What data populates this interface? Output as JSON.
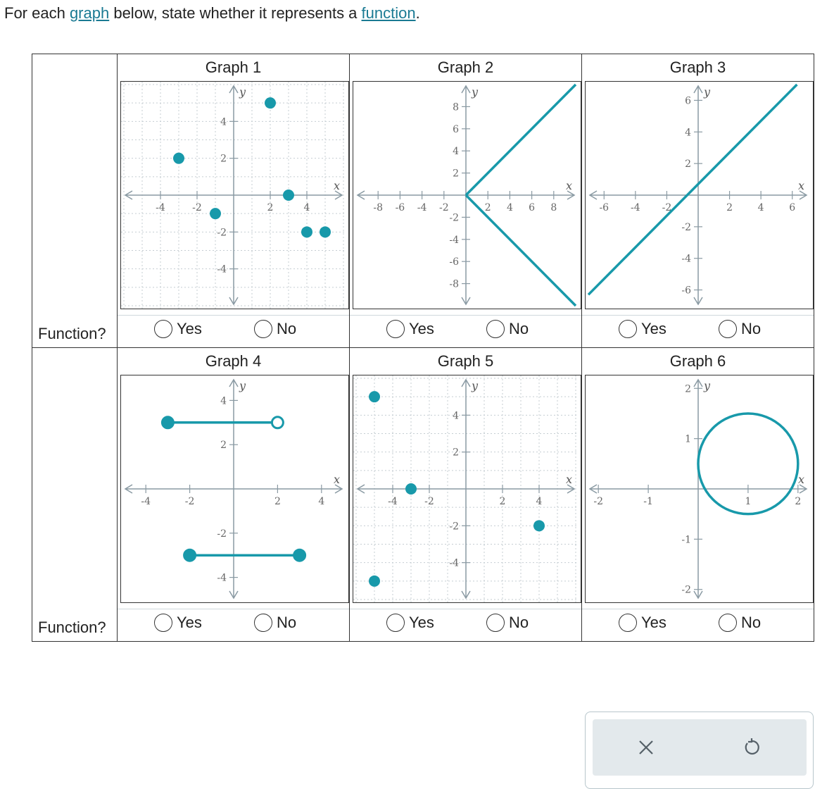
{
  "prompt": {
    "before": "For each ",
    "link1": "graph",
    "middle": " below, state whether it represents a ",
    "link2": "function",
    "after": "."
  },
  "row_label": "Function?",
  "choice_yes": "Yes",
  "choice_no": "No",
  "graphs": [
    {
      "title": "Graph 1",
      "type": "scatter",
      "x_axis_label": "x",
      "y_axis_label": "y",
      "xlim": [
        -6,
        6
      ],
      "ylim": [
        -6,
        6
      ],
      "x_ticks": [
        -4,
        -2,
        2,
        4
      ],
      "y_ticks": [
        -4,
        -2,
        2,
        4
      ],
      "points": [
        [
          -3,
          2
        ],
        [
          -1,
          -1
        ],
        [
          2,
          5
        ],
        [
          3,
          0
        ],
        [
          4,
          -2
        ],
        [
          5,
          -2
        ]
      ]
    },
    {
      "title": "Graph 2",
      "type": "line",
      "x_axis_label": "x",
      "y_axis_label": "y",
      "xlim": [
        -10,
        10
      ],
      "ylim": [
        -10,
        10
      ],
      "x_ticks": [
        -8,
        -6,
        -4,
        -2,
        2,
        4,
        6,
        8
      ],
      "y_ticks": [
        -8,
        -6,
        -4,
        -2,
        2,
        4,
        6,
        8
      ],
      "lines": [
        [
          [
            0,
            0
          ],
          [
            10,
            10
          ]
        ],
        [
          [
            0,
            0
          ],
          [
            10,
            -10
          ]
        ]
      ]
    },
    {
      "title": "Graph 3",
      "type": "line",
      "x_axis_label": "x",
      "y_axis_label": "y",
      "xlim": [
        -7,
        7
      ],
      "ylim": [
        -7,
        7
      ],
      "x_ticks": [
        -6,
        -4,
        -2,
        2,
        4,
        6
      ],
      "y_ticks": [
        -6,
        -4,
        -2,
        2,
        4,
        6
      ],
      "lines": [
        [
          [
            -7,
            -6.3
          ],
          [
            6.3,
            7
          ]
        ]
      ]
    },
    {
      "title": "Graph 4",
      "type": "segments",
      "x_axis_label": "x",
      "y_axis_label": "y",
      "xlim": [
        -5,
        5
      ],
      "ylim": [
        -5,
        5
      ],
      "x_ticks": [
        -4,
        -2,
        2,
        4
      ],
      "y_ticks": [
        -4,
        -2,
        2,
        4
      ],
      "segments": [
        {
          "from": [
            -3,
            3
          ],
          "to": [
            2,
            3
          ],
          "from_closed": true,
          "to_closed": false
        },
        {
          "from": [
            -2,
            -3
          ],
          "to": [
            3,
            -3
          ],
          "from_closed": true,
          "to_closed": true
        }
      ]
    },
    {
      "title": "Graph 5",
      "type": "scatter",
      "x_axis_label": "x",
      "y_axis_label": "y",
      "xlim": [
        -6,
        6
      ],
      "ylim": [
        -6,
        6
      ],
      "x_ticks": [
        -4,
        -2,
        2,
        4
      ],
      "y_ticks": [
        -4,
        -2,
        2,
        4
      ],
      "points": [
        [
          -5,
          5
        ],
        [
          -3,
          0
        ],
        [
          4,
          -2
        ],
        [
          -5,
          -5
        ]
      ]
    },
    {
      "title": "Graph 6",
      "type": "circle",
      "x_axis_label": "x",
      "y_axis_label": "y",
      "xlim": [
        -2.2,
        2.2
      ],
      "ylim": [
        -2.2,
        2.2
      ],
      "x_ticks": [
        -2,
        -1,
        1,
        2
      ],
      "y_ticks": [
        -2,
        -1,
        1,
        2
      ],
      "circle": {
        "cx": 1,
        "cy": 0.5,
        "r": 1
      }
    }
  ],
  "colors": {
    "accent": "#1899aa",
    "axis": "#8a9aa3",
    "grid": "#c5cdd2",
    "border": "#333333"
  },
  "icons": {
    "clear": "close-x-icon",
    "undo": "undo-arrow-icon"
  }
}
